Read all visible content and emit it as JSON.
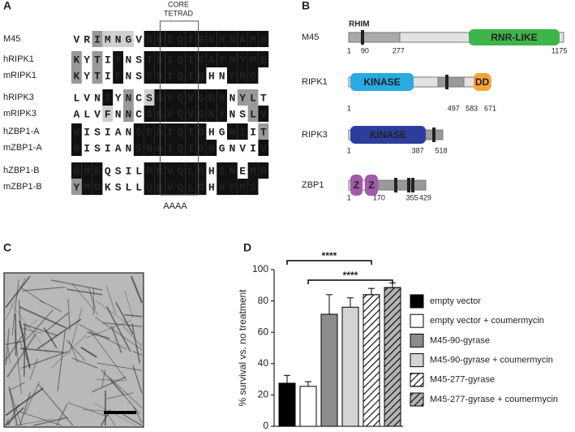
{
  "panels": {
    "a": "A",
    "b": "B",
    "c": "C",
    "d": "D"
  },
  "alignment": {
    "header": [
      "CORE",
      "TETRAD"
    ],
    "mutation": "AAAA",
    "rows": [
      {
        "name": "M45",
        "residues": [
          "V",
          "R",
          "I",
          "M",
          "N",
          "G",
          "V",
          "S",
          "G",
          "I",
          "Q",
          "I",
          "G",
          "N",
          "H",
          "N",
          "A",
          "M",
          "S"
        ]
      },
      {
        "name": "hRIPK1",
        "residues": [
          "K",
          "Y",
          "T",
          "I",
          "Y",
          "N",
          "S",
          "T",
          "G",
          "I",
          "Q",
          "I",
          "G",
          "A",
          "Y",
          "N",
          "Y",
          "M",
          "E"
        ]
      },
      {
        "name": "mRIPK1",
        "residues": [
          "K",
          "Y",
          "T",
          "I",
          "F",
          "N",
          "S",
          "S",
          "G",
          "I",
          "Q",
          "I",
          "G",
          "H",
          "N",
          "Y",
          "M",
          "D"
        ]
      },
      {
        "name": "hRIPK3",
        "residues": [
          "L",
          "V",
          "N",
          "I",
          "Y",
          "N",
          "C",
          "S",
          "G",
          "V",
          "Q",
          "V",
          "G",
          "D",
          "N",
          "N",
          "Y",
          "L",
          "T"
        ]
      },
      {
        "name": "mRIPK3",
        "residues": [
          "A",
          "L",
          "V",
          "F",
          "N",
          "N",
          "C",
          "S",
          "E",
          "V",
          "Q",
          "V",
          "G",
          "N",
          "Y",
          "N",
          "S",
          "L",
          "V"
        ]
      },
      {
        "name": "hZBP1-A",
        "residues": [
          "W",
          "I",
          "S",
          "I",
          "A",
          "N",
          "S",
          "E",
          "A",
          "I",
          "Q",
          "I",
          "G",
          "H",
          "G",
          "N",
          "I",
          "I",
          "T"
        ]
      },
      {
        "name": "mZBP1-A",
        "residues": [
          "H",
          "I",
          "S",
          "I",
          "A",
          "N",
          "S",
          "N",
          "A",
          "I",
          "Q",
          "I",
          "G",
          "H",
          "G",
          "N",
          "V",
          "I",
          "V"
        ]
      },
      {
        "name": "hZBP1-B",
        "residues": [
          "H",
          "M",
          "E",
          "Q",
          "S",
          "I",
          "L",
          "R",
          "R",
          "V",
          "Q",
          "L",
          "G",
          "H",
          "S",
          "N",
          "E",
          "M",
          "R"
        ]
      },
      {
        "name": "mZBP1-B",
        "residues": [
          "Y",
          "M",
          "D",
          "K",
          "S",
          "L",
          "L",
          "Q",
          "Q",
          "V",
          "Q",
          "L",
          "G",
          "H",
          "N",
          "E",
          "M",
          "S"
        ]
      }
    ]
  },
  "domains": {
    "motif": "RHIM",
    "proteins": [
      {
        "name": "M45",
        "positions": [
          1,
          90,
          277,
          1175
        ],
        "domains": [
          {
            "label": "RNR-LIKE",
            "color": "#3db54a"
          }
        ]
      },
      {
        "name": "RIPK1",
        "positions": [
          1,
          497,
          583,
          671
        ],
        "domains": [
          {
            "label": "KINASE",
            "color": "#29aae1"
          },
          {
            "label": "DD",
            "color": "#f7a535"
          }
        ]
      },
      {
        "name": "RIPK3",
        "positions": [
          1,
          387,
          518
        ],
        "domains": [
          {
            "label": "KINASE",
            "color": "#2c3d9c"
          }
        ]
      },
      {
        "name": "ZBP1",
        "positions": [
          1,
          170,
          355,
          429
        ],
        "domains": [
          {
            "label": "Z",
            "color": "#a05aa8"
          },
          {
            "label": "Z",
            "color": "#a05aa8"
          }
        ]
      }
    ]
  },
  "chart_data": {
    "type": "bar",
    "ylabel": "% survival vs. no treatment",
    "ylim": [
      0,
      100
    ],
    "yticks": [
      0,
      20,
      40,
      60,
      80,
      100
    ],
    "annotations": [
      "****",
      "****"
    ],
    "series": [
      {
        "name": "empty vector",
        "color": "#000000",
        "hatch": false,
        "values": [
          27.5
        ],
        "errors": [
          5
        ]
      },
      {
        "name": "empty vector + coumermycin",
        "color": "#ffffff",
        "hatch": false,
        "values": [
          25.5
        ],
        "errors": [
          3
        ]
      },
      {
        "name": "M45-90-gyrase",
        "color": "#8c8c8c",
        "hatch": false,
        "values": [
          71.5
        ],
        "errors": [
          12.5
        ]
      },
      {
        "name": "M45-90-gyrase + coumermycin",
        "color": "#d4d4d4",
        "hatch": false,
        "values": [
          76
        ],
        "errors": [
          6
        ]
      },
      {
        "name": "M45-277-gyrase",
        "color": "#ffffff",
        "hatch": true,
        "values": [
          84
        ],
        "errors": [
          4
        ]
      },
      {
        "name": "M45-277-gyrase + coumermycin",
        "color": "#b4b4b4",
        "hatch": true,
        "values": [
          88.5
        ],
        "errors": [
          3
        ]
      }
    ]
  }
}
